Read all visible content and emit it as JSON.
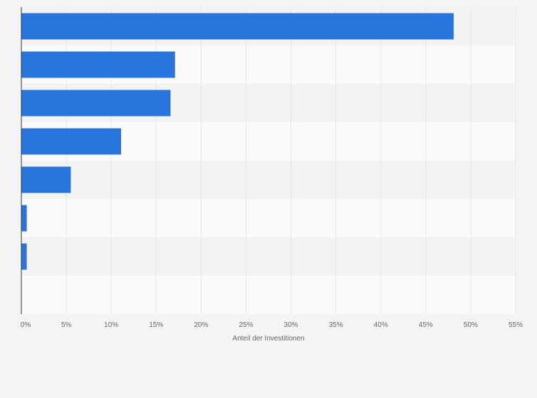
{
  "chart_data": {
    "type": "bar",
    "orientation": "horizontal",
    "categories": [
      "",
      "",
      "",
      "",
      "",
      "",
      "",
      ""
    ],
    "values": [
      48.1,
      17.1,
      16.6,
      11.1,
      5.5,
      0.6,
      0.6,
      0
    ],
    "xlabel": "Anteil der Investitionen",
    "xlim": [
      0,
      55
    ],
    "xticks": [
      0,
      5,
      10,
      15,
      20,
      25,
      30,
      35,
      40,
      45,
      50,
      55
    ],
    "xtick_labels": [
      "0%",
      "5%",
      "10%",
      "15%",
      "20%",
      "25%",
      "30%",
      "35%",
      "40%",
      "45%",
      "50%",
      "55%"
    ],
    "grid": true,
    "colors": {
      "bar": "#2876dd",
      "background": "#f4f4f4",
      "band_light": "#fafafa",
      "band_dark": "#f3f3f3",
      "grid": "#d8d8d8",
      "axis": "#333333",
      "text": "#666666"
    }
  }
}
